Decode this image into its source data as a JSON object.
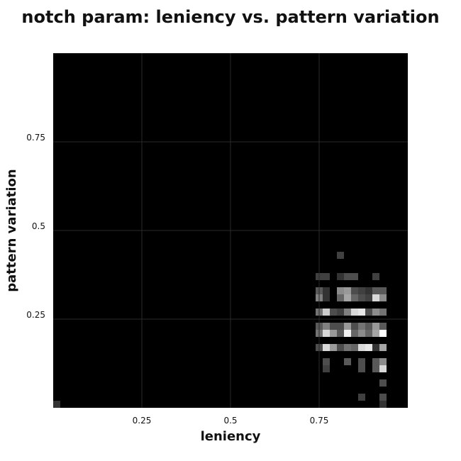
{
  "chart_data": {
    "type": "heatmap",
    "title": "notch param: leniency vs. pattern variation",
    "xlabel": "leniency",
    "ylabel": "pattern variation",
    "xlim": [
      0,
      1
    ],
    "ylim": [
      0,
      1
    ],
    "xticks": [
      0.25,
      0.5,
      0.75
    ],
    "xtick_labels": [
      "0.25",
      "0.5",
      "0.75"
    ],
    "yticks": [
      0.25,
      0.5,
      0.75
    ],
    "ytick_labels": [
      "0.25",
      "0.5",
      "0.75"
    ],
    "grid": true,
    "colormap": "grayscale",
    "background_color": "#000000",
    "bin_width": 0.02,
    "bin_height": 0.02,
    "cells": [
      {
        "x": 0.0,
        "y": 0.0,
        "v": 0.2
      },
      {
        "x": 0.8,
        "y": 0.42,
        "v": 0.25
      },
      {
        "x": 0.74,
        "y": 0.36,
        "v": 0.25
      },
      {
        "x": 0.76,
        "y": 0.36,
        "v": 0.25
      },
      {
        "x": 0.8,
        "y": 0.36,
        "v": 0.2
      },
      {
        "x": 0.82,
        "y": 0.36,
        "v": 0.3
      },
      {
        "x": 0.84,
        "y": 0.36,
        "v": 0.3
      },
      {
        "x": 0.9,
        "y": 0.36,
        "v": 0.25
      },
      {
        "x": 0.74,
        "y": 0.32,
        "v": 0.35
      },
      {
        "x": 0.76,
        "y": 0.32,
        "v": 0.2
      },
      {
        "x": 0.8,
        "y": 0.32,
        "v": 0.55
      },
      {
        "x": 0.82,
        "y": 0.32,
        "v": 0.6
      },
      {
        "x": 0.84,
        "y": 0.32,
        "v": 0.3
      },
      {
        "x": 0.86,
        "y": 0.32,
        "v": 0.25
      },
      {
        "x": 0.88,
        "y": 0.32,
        "v": 0.2
      },
      {
        "x": 0.9,
        "y": 0.32,
        "v": 0.35
      },
      {
        "x": 0.92,
        "y": 0.32,
        "v": 0.35
      },
      {
        "x": 0.74,
        "y": 0.3,
        "v": 0.5
      },
      {
        "x": 0.76,
        "y": 0.3,
        "v": 0.2
      },
      {
        "x": 0.8,
        "y": 0.3,
        "v": 0.4
      },
      {
        "x": 0.82,
        "y": 0.3,
        "v": 0.65
      },
      {
        "x": 0.84,
        "y": 0.3,
        "v": 0.4
      },
      {
        "x": 0.86,
        "y": 0.3,
        "v": 0.3
      },
      {
        "x": 0.88,
        "y": 0.3,
        "v": 0.25
      },
      {
        "x": 0.9,
        "y": 0.3,
        "v": 0.85
      },
      {
        "x": 0.92,
        "y": 0.3,
        "v": 0.55
      },
      {
        "x": 0.74,
        "y": 0.26,
        "v": 0.45
      },
      {
        "x": 0.76,
        "y": 0.26,
        "v": 0.8
      },
      {
        "x": 0.78,
        "y": 0.26,
        "v": 0.3
      },
      {
        "x": 0.8,
        "y": 0.26,
        "v": 0.25
      },
      {
        "x": 0.82,
        "y": 0.26,
        "v": 0.5
      },
      {
        "x": 0.84,
        "y": 0.26,
        "v": 0.85
      },
      {
        "x": 0.86,
        "y": 0.26,
        "v": 0.9
      },
      {
        "x": 0.88,
        "y": 0.26,
        "v": 0.3
      },
      {
        "x": 0.9,
        "y": 0.26,
        "v": 0.55
      },
      {
        "x": 0.92,
        "y": 0.26,
        "v": 0.45
      },
      {
        "x": 0.74,
        "y": 0.22,
        "v": 0.35
      },
      {
        "x": 0.76,
        "y": 0.22,
        "v": 0.5
      },
      {
        "x": 0.78,
        "y": 0.22,
        "v": 0.3
      },
      {
        "x": 0.8,
        "y": 0.22,
        "v": 0.3
      },
      {
        "x": 0.82,
        "y": 0.22,
        "v": 0.6
      },
      {
        "x": 0.84,
        "y": 0.22,
        "v": 0.3
      },
      {
        "x": 0.86,
        "y": 0.22,
        "v": 0.45
      },
      {
        "x": 0.88,
        "y": 0.22,
        "v": 0.35
      },
      {
        "x": 0.9,
        "y": 0.22,
        "v": 0.6
      },
      {
        "x": 0.92,
        "y": 0.22,
        "v": 0.35
      },
      {
        "x": 0.74,
        "y": 0.2,
        "v": 0.45
      },
      {
        "x": 0.76,
        "y": 0.2,
        "v": 0.85
      },
      {
        "x": 0.78,
        "y": 0.2,
        "v": 0.6
      },
      {
        "x": 0.8,
        "y": 0.2,
        "v": 0.35
      },
      {
        "x": 0.82,
        "y": 0.2,
        "v": 0.95
      },
      {
        "x": 0.84,
        "y": 0.2,
        "v": 0.4
      },
      {
        "x": 0.86,
        "y": 0.2,
        "v": 0.55
      },
      {
        "x": 0.88,
        "y": 0.2,
        "v": 0.4
      },
      {
        "x": 0.9,
        "y": 0.2,
        "v": 0.65
      },
      {
        "x": 0.92,
        "y": 0.2,
        "v": 1.0
      },
      {
        "x": 0.74,
        "y": 0.16,
        "v": 0.3
      },
      {
        "x": 0.76,
        "y": 0.16,
        "v": 0.85
      },
      {
        "x": 0.78,
        "y": 0.16,
        "v": 0.6
      },
      {
        "x": 0.8,
        "y": 0.16,
        "v": 0.3
      },
      {
        "x": 0.82,
        "y": 0.16,
        "v": 0.45
      },
      {
        "x": 0.84,
        "y": 0.16,
        "v": 0.4
      },
      {
        "x": 0.86,
        "y": 0.16,
        "v": 0.85
      },
      {
        "x": 0.88,
        "y": 0.16,
        "v": 0.9
      },
      {
        "x": 0.9,
        "y": 0.16,
        "v": 0.2
      },
      {
        "x": 0.92,
        "y": 0.16,
        "v": 0.65
      },
      {
        "x": 0.76,
        "y": 0.12,
        "v": 0.3
      },
      {
        "x": 0.82,
        "y": 0.12,
        "v": 0.35
      },
      {
        "x": 0.86,
        "y": 0.12,
        "v": 0.3
      },
      {
        "x": 0.9,
        "y": 0.12,
        "v": 0.35
      },
      {
        "x": 0.92,
        "y": 0.12,
        "v": 0.55
      },
      {
        "x": 0.76,
        "y": 0.1,
        "v": 0.25
      },
      {
        "x": 0.86,
        "y": 0.1,
        "v": 0.3
      },
      {
        "x": 0.9,
        "y": 0.1,
        "v": 0.35
      },
      {
        "x": 0.92,
        "y": 0.1,
        "v": 0.85
      },
      {
        "x": 0.92,
        "y": 0.06,
        "v": 0.3
      },
      {
        "x": 0.86,
        "y": 0.02,
        "v": 0.25
      },
      {
        "x": 0.92,
        "y": 0.02,
        "v": 0.3
      },
      {
        "x": 0.92,
        "y": 0.0,
        "v": 0.2
      }
    ]
  }
}
